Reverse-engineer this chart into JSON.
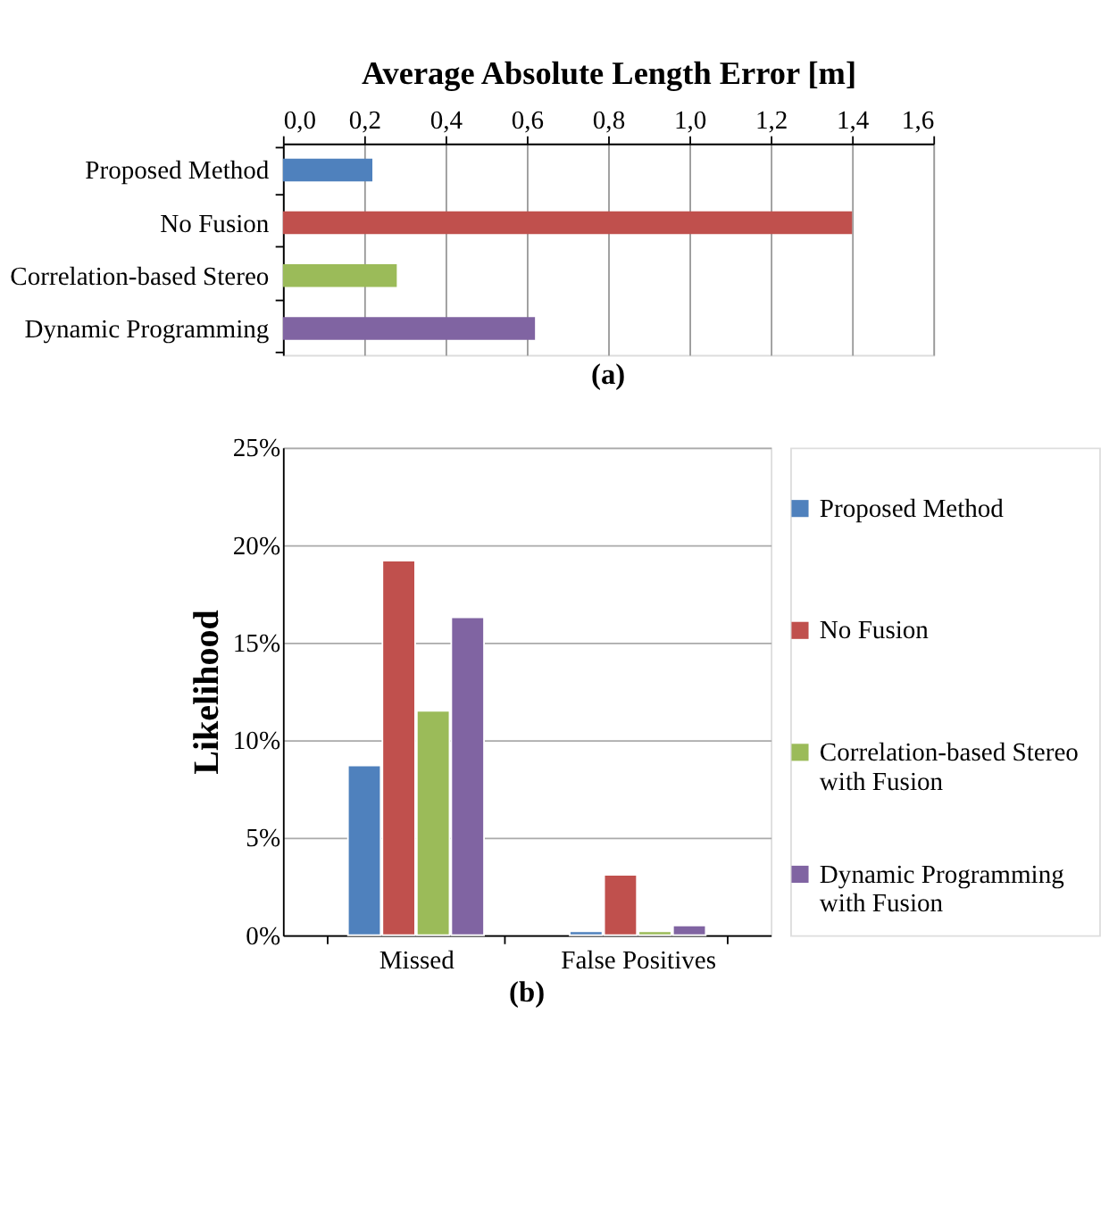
{
  "chart_data": [
    {
      "type": "bar",
      "orientation": "horizontal",
      "xlabel": "Average Absolute Length Error [m]",
      "categories": [
        "Proposed Method",
        "No Fusion",
        "Correlation-based Stereo",
        "Dynamic Programming"
      ],
      "values": [
        0.22,
        1.4,
        0.28,
        0.62
      ],
      "colors": [
        "#4f81bd",
        "#c0504d",
        "#9bbb59",
        "#8064a2"
      ],
      "xlim": [
        0,
        1.6
      ],
      "xticks": [
        {
          "value": 0,
          "label": "0,0"
        },
        {
          "value": 0.2,
          "label": "0,2"
        },
        {
          "value": 0.4,
          "label": "0,4"
        },
        {
          "value": 0.6,
          "label": "0,6"
        },
        {
          "value": 0.8,
          "label": "0,8"
        },
        {
          "value": 1.0,
          "label": "1,0"
        },
        {
          "value": 1.2,
          "label": "1,2"
        },
        {
          "value": 1.4,
          "label": "1,4"
        },
        {
          "value": 1.6,
          "label": "1,6"
        }
      ],
      "grid": "x",
      "legend": false,
      "annotations": [
        "(a)"
      ]
    },
    {
      "type": "bar",
      "ylabel": "Likelihood",
      "categories": [
        "Missed",
        "False Positives"
      ],
      "series": [
        {
          "name": "Proposed Method",
          "color": "#4f81bd",
          "values": [
            8.7,
            0.2
          ]
        },
        {
          "name": "No Fusion",
          "color": "#c0504d",
          "values": [
            19.2,
            3.1
          ]
        },
        {
          "name": "Correlation-based Stereo\nwith Fusion",
          "color": "#9bbb59",
          "values": [
            11.5,
            0.2
          ]
        },
        {
          "name": "Dynamic Programming\nwith Fusion",
          "color": "#8064a2",
          "values": [
            16.3,
            0.5
          ]
        }
      ],
      "ylim": [
        0,
        25
      ],
      "yticks": [
        {
          "value": 0,
          "label": "0%"
        },
        {
          "value": 5,
          "label": "5%"
        },
        {
          "value": 10,
          "label": "10%"
        },
        {
          "value": 15,
          "label": "15%"
        },
        {
          "value": 20,
          "label": "20%"
        },
        {
          "value": 25,
          "label": "25%"
        }
      ],
      "grid": "y",
      "legend": "right",
      "annotations": [
        "(b)"
      ]
    }
  ]
}
